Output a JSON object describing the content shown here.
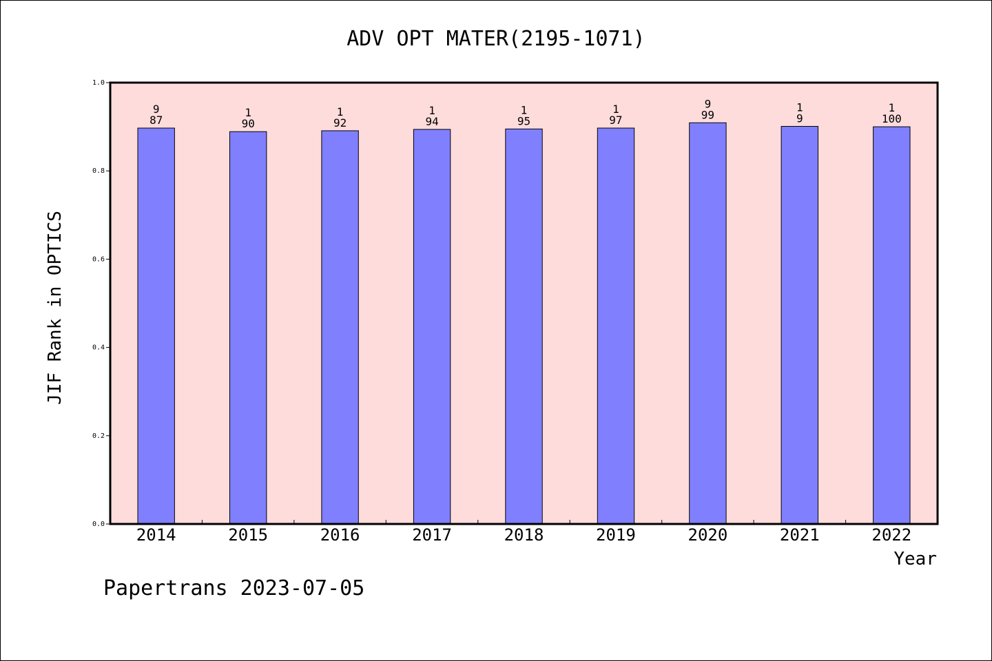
{
  "chart_data": {
    "type": "bar",
    "title": "ADV OPT MATER(2195-1071)",
    "xlabel": "Year",
    "ylabel": "JIF Rank in OPTICS",
    "categories": [
      "2014",
      "2015",
      "2016",
      "2017",
      "2018",
      "2019",
      "2020",
      "2021",
      "2022"
    ],
    "values": [
      0.897,
      0.889,
      0.891,
      0.894,
      0.895,
      0.897,
      0.909,
      0.901,
      0.9
    ],
    "bar_labels": [
      [
        "9",
        "87"
      ],
      [
        "1",
        "90"
      ],
      [
        "1",
        "92"
      ],
      [
        "1",
        "94"
      ],
      [
        "1",
        "95"
      ],
      [
        "1",
        "97"
      ],
      [
        "9",
        "99"
      ],
      [
        "1",
        "9"
      ],
      [
        "1",
        "100"
      ]
    ],
    "ylim": [
      0,
      1.0
    ],
    "yticks": [
      "0.0",
      "0.2",
      "0.4",
      "0.6",
      "0.8",
      "1.0"
    ],
    "grid": false,
    "colors": {
      "bar_fill": "#8080ff",
      "plot_background": "#ffdcdc",
      "axis": "#000000"
    }
  },
  "footer": "Papertrans 2023-07-05"
}
